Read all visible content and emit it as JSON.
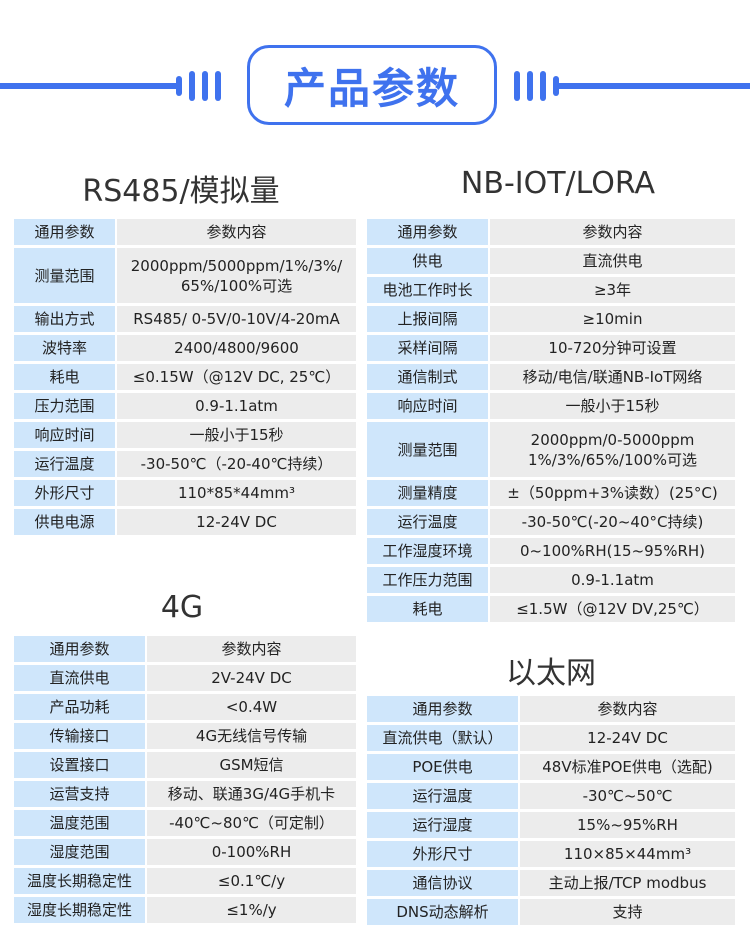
{
  "banner": {
    "title": "产品参数",
    "accent": "#3f72ee"
  },
  "colors": {
    "label_bg": "#cfe6fb",
    "value_bg": "#ececec"
  },
  "sections": [
    {
      "title": "RS485/模拟量",
      "header": [
        "通用参数",
        "参数内容"
      ],
      "rows": [
        [
          "测量范围",
          "2000ppm/5000ppm/1%/3%/\n65%/100%可选"
        ],
        [
          "输出方式",
          "RS485/ 0-5V/0-10V/4-20mA"
        ],
        [
          "波特率",
          "2400/4800/9600"
        ],
        [
          "耗电",
          "≤0.15W（@12V DC, 25℃）"
        ],
        [
          "压力范围",
          "0.9-1.1atm"
        ],
        [
          "响应时间",
          "一般小于15秒"
        ],
        [
          "运行温度",
          "-30-50℃（-20-40℃持续）"
        ],
        [
          "外形尺寸",
          "110*85*44mm³"
        ],
        [
          "供电电源",
          "12-24V DC"
        ]
      ]
    },
    {
      "title": "NB-IOT/LORA",
      "header": [
        "通用参数",
        "参数内容"
      ],
      "rows": [
        [
          "供电",
          "直流供电"
        ],
        [
          "电池工作时长",
          "≥3年"
        ],
        [
          "上报间隔",
          "≥10min"
        ],
        [
          "采样间隔",
          "10-720分钟可设置"
        ],
        [
          "通信制式",
          "移动/电信/联通NB-IoT网络"
        ],
        [
          "响应时间",
          "一般小于15秒"
        ],
        [
          "测量范围",
          "2000ppm/0-5000ppm\n1%/3%/65%/100%可选"
        ],
        [
          "测量精度",
          "±（50ppm+3%读数）(25°C)"
        ],
        [
          "运行温度",
          "-30-50℃(-20~40°C持续)"
        ],
        [
          "工作湿度环境",
          "0~100%RH(15~95%RH)"
        ],
        [
          "工作压力范围",
          "0.9-1.1atm"
        ],
        [
          "耗电",
          "≤1.5W（@12V DV,25℃）"
        ]
      ]
    },
    {
      "title": "4G",
      "header": [
        "通用参数",
        "参数内容"
      ],
      "rows": [
        [
          "直流供电",
          "2V-24V DC"
        ],
        [
          "产品功耗",
          "<0.4W"
        ],
        [
          "传输接口",
          "4G无线信号传输"
        ],
        [
          "设置接口",
          "GSM短信"
        ],
        [
          "运营支持",
          "移动、联通3G/4G手机卡"
        ],
        [
          "温度范围",
          "-40℃~80℃（可定制）"
        ],
        [
          "湿度范围",
          "0-100%RH"
        ],
        [
          "温度长期稳定性",
          "≤0.1℃/y"
        ],
        [
          "湿度长期稳定性",
          "≤1%/y"
        ]
      ]
    },
    {
      "title": "以太网",
      "header": [
        "通用参数",
        "参数内容"
      ],
      "rows": [
        [
          "直流供电（默认）",
          "12-24V DC"
        ],
        [
          "POE供电",
          "48V标准POE供电（选配)"
        ],
        [
          "运行温度",
          "-30℃~50℃"
        ],
        [
          "运行湿度",
          "15%~95%RH"
        ],
        [
          "外形尺寸",
          "110×85×44mm³"
        ],
        [
          "通信协议",
          "主动上报/TCP modbus"
        ],
        [
          "DNS动态解析",
          "支持"
        ]
      ]
    }
  ]
}
